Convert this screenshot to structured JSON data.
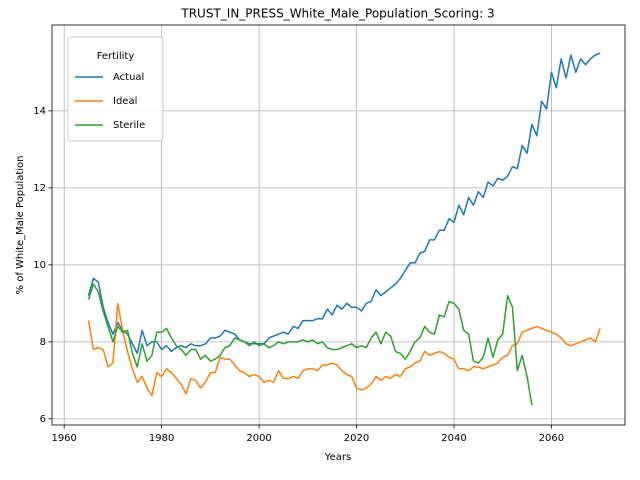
{
  "chart_data": {
    "type": "line",
    "title": "TRUST_IN_PRESS_White_Male_Population_Scoring: 3",
    "x_label": "Years",
    "y_label": "% of White_Male Population",
    "legend_title": "Fertility",
    "legend_loc": "upper left",
    "grid": true,
    "xlim": [
      1957.5,
      2075.1
    ],
    "ylim": [
      5.84,
      16.23
    ],
    "xticks": [
      1960,
      1980,
      2000,
      2020,
      2040,
      2060
    ],
    "yticks": [
      6,
      8,
      10,
      12,
      14
    ],
    "x": [
      1965,
      1966,
      1967,
      1968,
      1969,
      1970,
      1971,
      1972,
      1973,
      1974,
      1975,
      1976,
      1977,
      1978,
      1979,
      1980,
      1981,
      1982,
      1983,
      1984,
      1985,
      1986,
      1987,
      1988,
      1989,
      1990,
      1991,
      1992,
      1993,
      1994,
      1995,
      1996,
      1997,
      1998,
      1999,
      2000,
      2001,
      2002,
      2003,
      2004,
      2005,
      2006,
      2007,
      2008,
      2009,
      2010,
      2011,
      2012,
      2013,
      2014,
      2015,
      2016,
      2017,
      2018,
      2019,
      2020,
      2021,
      2022,
      2023,
      2024,
      2025,
      2026,
      2027,
      2028,
      2029,
      2030,
      2031,
      2032,
      2033,
      2034,
      2035,
      2036,
      2037,
      2038,
      2039,
      2040,
      2041,
      2042,
      2043,
      2044,
      2045,
      2046,
      2047,
      2048,
      2049,
      2050,
      2051,
      2052,
      2053,
      2054,
      2055,
      2056,
      2057,
      2058,
      2059,
      2060,
      2061,
      2062,
      2063,
      2064,
      2065,
      2066,
      2067,
      2068,
      2069,
      2070
    ],
    "series": [
      {
        "name": "Actual",
        "color": "#1f77b4",
        "values": [
          9.2,
          9.65,
          9.55,
          8.9,
          8.5,
          8.2,
          8.5,
          8.3,
          8.2,
          7.95,
          7.7,
          8.3,
          7.9,
          8.0,
          8.0,
          7.8,
          7.9,
          7.75,
          7.85,
          7.9,
          7.85,
          7.95,
          7.9,
          7.9,
          7.95,
          8.1,
          8.1,
          8.15,
          8.3,
          8.25,
          8.2,
          8.05,
          8.0,
          7.95,
          7.95,
          7.95,
          7.95,
          8.1,
          8.15,
          8.2,
          8.25,
          8.2,
          8.4,
          8.35,
          8.55,
          8.55,
          8.55,
          8.6,
          8.6,
          8.85,
          8.7,
          8.95,
          8.85,
          9.0,
          8.9,
          8.9,
          8.8,
          9.0,
          9.05,
          9.35,
          9.2,
          9.3,
          9.4,
          9.5,
          9.65,
          9.85,
          10.05,
          10.05,
          10.3,
          10.35,
          10.65,
          10.65,
          10.9,
          10.9,
          11.2,
          11.1,
          11.55,
          11.3,
          11.75,
          11.55,
          11.9,
          11.75,
          12.15,
          12.05,
          12.25,
          12.2,
          12.3,
          12.55,
          12.5,
          13.1,
          12.9,
          13.65,
          13.35,
          14.25,
          14.05,
          15.0,
          14.6,
          15.35,
          14.85,
          15.45,
          15.0,
          15.35,
          15.2,
          15.35,
          15.45,
          15.5
        ]
      },
      {
        "name": "Ideal",
        "color": "#ff7f0e",
        "values": [
          8.55,
          7.8,
          7.85,
          7.8,
          7.35,
          7.45,
          9.0,
          8.3,
          7.75,
          7.3,
          6.95,
          7.1,
          6.8,
          6.6,
          7.2,
          7.1,
          7.3,
          7.2,
          7.05,
          6.9,
          6.65,
          7.05,
          7.0,
          6.8,
          6.95,
          7.2,
          7.2,
          7.6,
          7.55,
          7.55,
          7.4,
          7.25,
          7.2,
          7.1,
          7.15,
          7.1,
          6.95,
          7.0,
          6.95,
          7.25,
          7.05,
          7.05,
          7.1,
          7.05,
          7.25,
          7.3,
          7.3,
          7.25,
          7.4,
          7.4,
          7.45,
          7.4,
          7.25,
          7.15,
          7.1,
          6.8,
          6.75,
          6.8,
          6.9,
          7.1,
          7.0,
          7.1,
          7.05,
          7.15,
          7.1,
          7.3,
          7.35,
          7.45,
          7.5,
          7.75,
          7.65,
          7.7,
          7.75,
          7.7,
          7.6,
          7.55,
          7.3,
          7.3,
          7.25,
          7.35,
          7.35,
          7.3,
          7.35,
          7.4,
          7.45,
          7.6,
          7.65,
          7.9,
          7.95,
          8.25,
          8.3,
          8.35,
          8.4,
          8.35,
          8.3,
          8.25,
          8.2,
          8.1,
          7.95,
          7.9,
          7.95,
          8.0,
          8.05,
          8.1,
          8.0,
          8.35
        ]
      },
      {
        "name": "Sterile",
        "color": "#2ca02c",
        "values": [
          9.1,
          9.5,
          9.3,
          8.8,
          8.4,
          8.0,
          8.4,
          8.25,
          8.3,
          7.7,
          7.35,
          7.95,
          7.5,
          7.65,
          8.25,
          8.25,
          8.35,
          8.1,
          7.9,
          7.8,
          7.65,
          7.8,
          7.8,
          7.55,
          7.65,
          7.5,
          7.55,
          7.65,
          7.85,
          7.9,
          8.1,
          8.05,
          8.0,
          7.9,
          8.0,
          7.9,
          7.95,
          7.85,
          7.9,
          8.0,
          7.95,
          8.0,
          8.0,
          8.0,
          8.05,
          8.0,
          8.05,
          7.95,
          8.0,
          7.85,
          7.8,
          7.8,
          7.85,
          7.9,
          7.95,
          7.85,
          7.9,
          7.85,
          8.1,
          8.25,
          7.95,
          8.25,
          8.15,
          7.75,
          7.7,
          7.55,
          7.75,
          8.0,
          8.1,
          8.4,
          8.25,
          8.2,
          8.7,
          8.65,
          9.05,
          9.0,
          8.85,
          8.3,
          8.2,
          7.5,
          7.45,
          7.6,
          8.1,
          7.6,
          8.05,
          8.2,
          9.2,
          8.9,
          7.25,
          7.65,
          7.1,
          6.35,
          null,
          null,
          null,
          null,
          null,
          null,
          null,
          null,
          null,
          null,
          null,
          null,
          null,
          null
        ]
      }
    ]
  }
}
